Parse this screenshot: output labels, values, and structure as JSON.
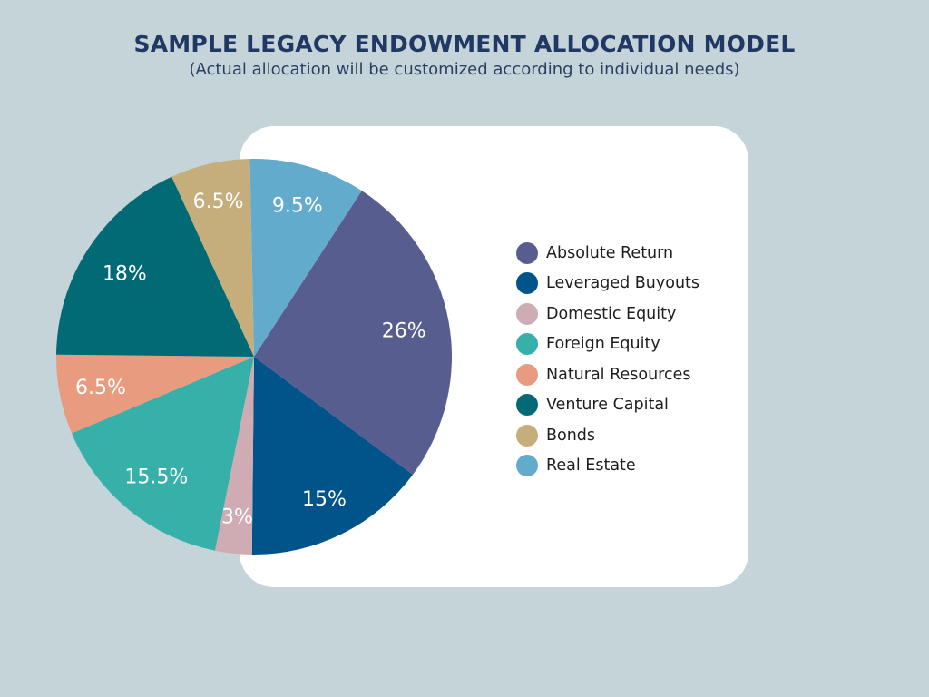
{
  "chart_data": {
    "type": "pie",
    "title": "SAMPLE LEGACY ENDOWMENT ALLOCATION MODEL",
    "subtitle": "(Actual allocation will be customized according to individual needs)",
    "slices": [
      {
        "name": "Absolute Return",
        "value": 26,
        "label": "26%",
        "color": "#575e8f"
      },
      {
        "name": "Leveraged Buyouts",
        "value": 15,
        "label": "15%",
        "color": "#00548a"
      },
      {
        "name": "Domestic Equity",
        "value": 3,
        "label": "3%",
        "color": "#cfabb3"
      },
      {
        "name": "Foreign Equity",
        "value": 15.5,
        "label": "15.5%",
        "color": "#37b0a9"
      },
      {
        "name": "Natural Resources",
        "value": 6.5,
        "label": "6.5%",
        "color": "#e99b80"
      },
      {
        "name": "Venture Capital",
        "value": 18,
        "label": "18%",
        "color": "#026a75"
      },
      {
        "name": "Bonds",
        "value": 6.5,
        "label": "6.5%",
        "color": "#c5ad7c"
      },
      {
        "name": "Real Estate",
        "value": 9.5,
        "label": "9.5%",
        "color": "#62abcc"
      }
    ],
    "legend_position": "right",
    "label_color": "#ffffff"
  }
}
